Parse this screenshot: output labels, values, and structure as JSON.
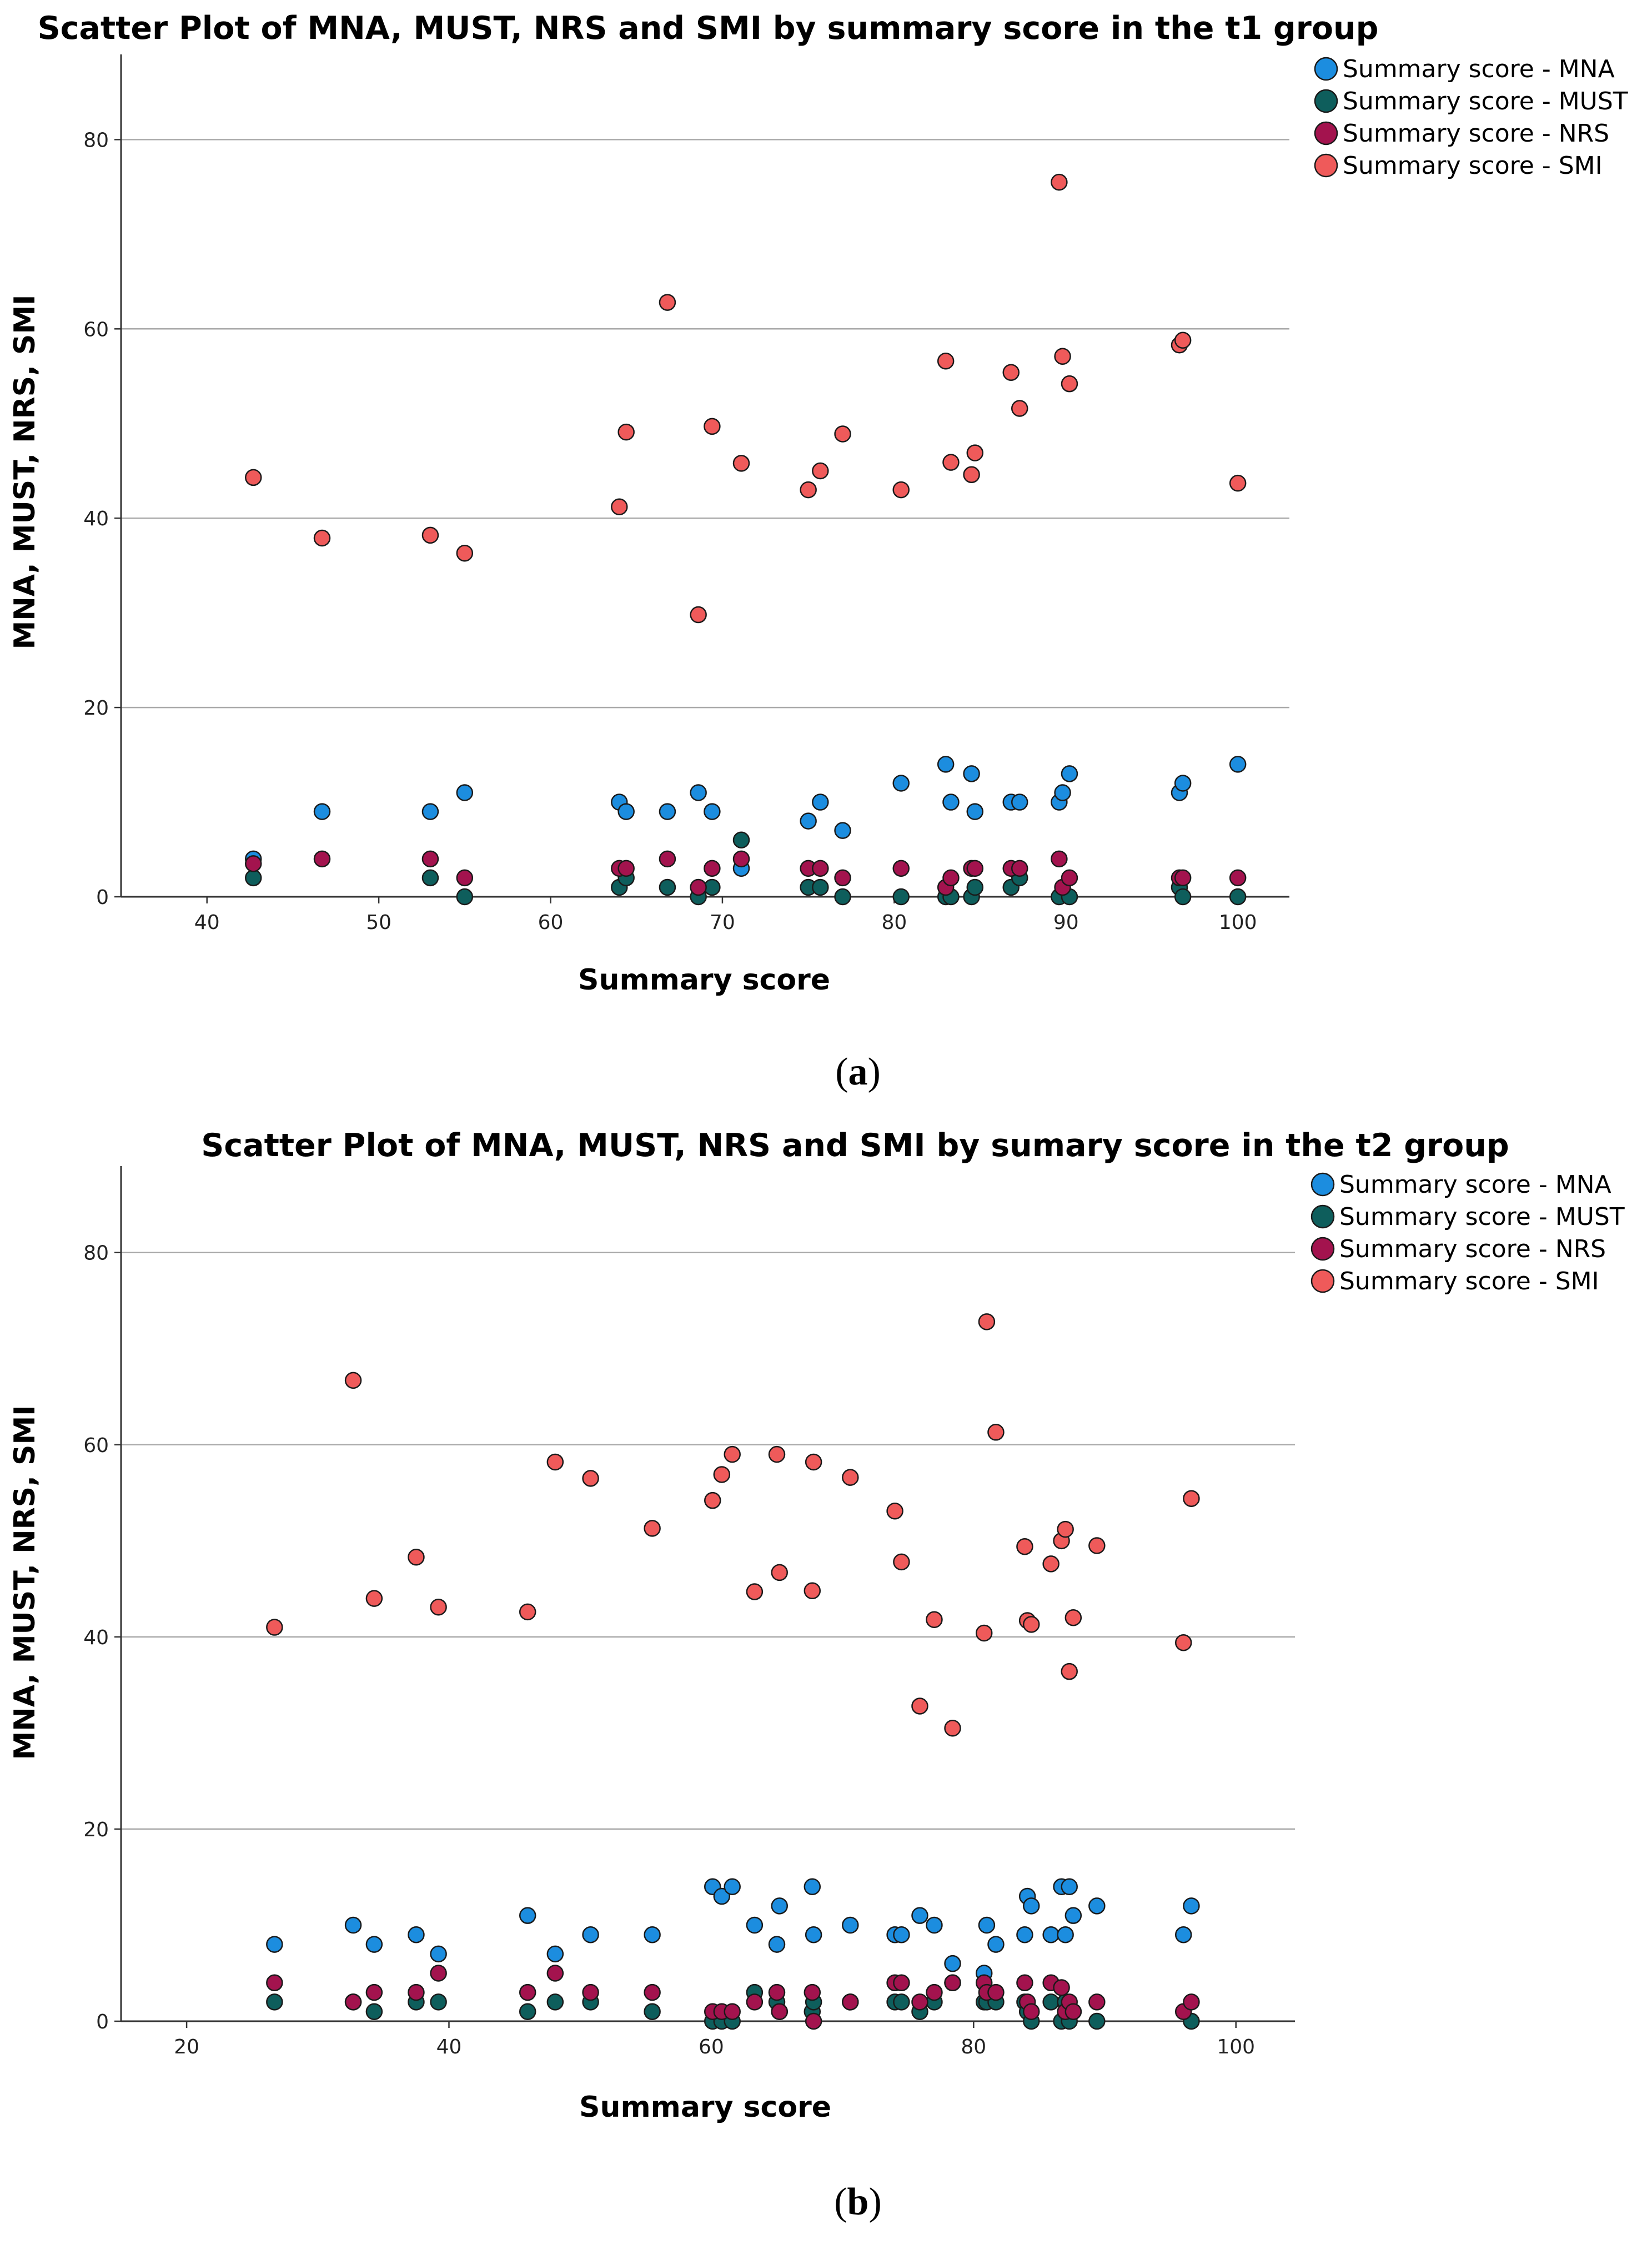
{
  "figure": {
    "caption_a": "a",
    "caption_b": "b"
  },
  "chart_data": [
    {
      "type": "scatter",
      "title": "Scatter Plot of MNA, MUST, NRS and SMI by summary score in the t1 group",
      "xlabel": "Summary score",
      "ylabel": "MNA, MUST, NRS, SMI",
      "xlim": [
        35,
        103
      ],
      "ylim": [
        0,
        89
      ],
      "xticks": [
        40,
        50,
        60,
        70,
        80,
        90,
        100
      ],
      "yticks": [
        20,
        40,
        60,
        80
      ],
      "grid": "horizontal",
      "legend_position": "top-right",
      "series": [
        {
          "name": "Summary score - MNA",
          "color": "#1c8ddf",
          "x": [
            42.7,
            46.7,
            53.0,
            55.0,
            64.0,
            64.4,
            66.8,
            68.6,
            69.4,
            71.1,
            75.0,
            75.7,
            77.0,
            80.4,
            83.0,
            83.3,
            84.5,
            84.7,
            86.8,
            87.3,
            89.6,
            89.8,
            90.2,
            96.6,
            96.8,
            100.0
          ],
          "y": [
            4,
            9,
            9,
            11,
            10,
            9,
            9,
            11,
            9,
            3,
            8,
            10,
            7,
            12,
            14,
            10,
            13,
            9,
            10,
            10,
            10,
            11,
            13,
            11,
            12,
            14
          ]
        },
        {
          "name": "Summary score - MUST",
          "color": "#0e5e5c",
          "x": [
            42.7,
            53.0,
            55.0,
            64.0,
            64.4,
            66.8,
            68.6,
            69.4,
            71.1,
            75.0,
            75.7,
            77.0,
            80.4,
            83.0,
            83.3,
            84.5,
            84.7,
            86.8,
            87.3,
            89.6,
            90.2,
            96.6,
            96.8,
            100.0
          ],
          "y": [
            2,
            2,
            0,
            1,
            2,
            1,
            0,
            1,
            6,
            1,
            1,
            0,
            0,
            0,
            0,
            0,
            1,
            1,
            2,
            0,
            0,
            1,
            0,
            0
          ]
        },
        {
          "name": "Summary score - NRS",
          "color": "#a3134e",
          "x": [
            42.7,
            46.7,
            53.0,
            55.0,
            64.0,
            64.4,
            66.8,
            68.6,
            69.4,
            71.1,
            75.0,
            75.7,
            77.0,
            80.4,
            83.0,
            83.3,
            84.5,
            84.7,
            86.8,
            87.3,
            89.6,
            89.8,
            90.2,
            96.6,
            96.8,
            100.0
          ],
          "y": [
            3.5,
            4,
            4,
            2,
            3,
            3,
            4,
            1,
            3,
            4,
            3,
            3,
            2,
            3,
            1,
            2,
            3,
            3,
            3,
            3,
            4,
            1,
            2,
            2,
            2,
            2
          ]
        },
        {
          "name": "Summary score - SMI",
          "color": "#ef5a5a",
          "x": [
            42.7,
            46.7,
            53.0,
            55.0,
            64.0,
            64.4,
            66.8,
            68.6,
            69.4,
            71.1,
            75.0,
            75.7,
            77.0,
            80.4,
            83.0,
            83.3,
            84.5,
            84.7,
            86.8,
            87.3,
            89.6,
            89.8,
            90.2,
            96.6,
            96.8,
            100.0
          ],
          "y": [
            44.3,
            37.9,
            38.2,
            36.3,
            41.2,
            49.1,
            62.8,
            29.8,
            49.7,
            45.8,
            43.0,
            45.0,
            48.9,
            43.0,
            56.6,
            45.9,
            44.6,
            46.9,
            55.4,
            51.6,
            75.5,
            57.1,
            54.2,
            58.3,
            58.8,
            43.7
          ]
        }
      ]
    },
    {
      "type": "scatter",
      "title": "Scatter Plot of MNA, MUST, NRS and SMI by sumary score in the t2 group",
      "xlabel": "Summary score",
      "ylabel": "MNA, MUST, NRS, SMI",
      "xlim": [
        15,
        104.5
      ],
      "ylim": [
        0,
        89
      ],
      "xticks": [
        20,
        40,
        60,
        80,
        100
      ],
      "yticks": [
        20,
        40,
        60,
        80
      ],
      "grid": "horizontal",
      "legend_position": "top-right",
      "series": [
        {
          "name": "Summary score - MNA",
          "color": "#1c8ddf",
          "x": [
            26.7,
            32.7,
            34.3,
            37.5,
            39.2,
            46.0,
            48.1,
            50.8,
            55.5,
            60.1,
            60.8,
            61.6,
            63.3,
            65.0,
            65.2,
            67.7,
            67.8,
            70.6,
            74.0,
            74.5,
            75.9,
            77.0,
            78.4,
            80.8,
            81.0,
            81.7,
            83.9,
            84.1,
            84.4,
            85.9,
            86.7,
            87.0,
            87.3,
            87.6,
            89.4,
            96.0,
            96.6
          ],
          "y": [
            8,
            10,
            8,
            9,
            7,
            11,
            7,
            9,
            9,
            14,
            13,
            14,
            10,
            8,
            12,
            14,
            9,
            10,
            9,
            9,
            11,
            10,
            6,
            5,
            10,
            8,
            9,
            13,
            12,
            9,
            14,
            9,
            14,
            11,
            12,
            9,
            12
          ]
        },
        {
          "name": "Summary score - MUST",
          "color": "#0e5e5c",
          "x": [
            26.7,
            32.7,
            34.3,
            37.5,
            39.2,
            46.0,
            48.1,
            50.8,
            55.5,
            60.1,
            60.8,
            61.6,
            63.3,
            65.0,
            65.2,
            67.7,
            67.8,
            70.6,
            74.0,
            74.5,
            75.9,
            77.0,
            78.4,
            80.8,
            81.0,
            81.7,
            83.9,
            84.1,
            84.4,
            85.9,
            86.7,
            87.0,
            87.3,
            87.6,
            89.4,
            96.6
          ],
          "y": [
            2,
            2,
            1,
            2,
            2,
            1,
            2,
            2,
            1,
            0,
            0,
            0,
            3,
            2,
            1,
            1,
            2,
            2,
            2,
            2,
            1,
            2,
            4,
            2,
            2,
            2,
            2,
            1,
            0,
            2,
            0,
            2,
            0,
            1,
            0,
            0
          ]
        },
        {
          "name": "Summary score - NRS",
          "color": "#a3134e",
          "x": [
            26.7,
            32.7,
            34.3,
            37.5,
            39.2,
            46.0,
            48.1,
            50.8,
            55.5,
            60.1,
            60.8,
            61.6,
            63.3,
            65.0,
            65.2,
            67.7,
            67.8,
            70.6,
            74.0,
            74.5,
            75.9,
            77.0,
            78.4,
            80.8,
            81.0,
            81.7,
            83.9,
            84.1,
            84.4,
            85.9,
            86.7,
            87.0,
            87.3,
            87.6,
            89.4,
            96.0,
            96.6
          ],
          "y": [
            4,
            2,
            3,
            3,
            5,
            3,
            5,
            3,
            3,
            1,
            1,
            1,
            2,
            3,
            1,
            3,
            0,
            2,
            4,
            4,
            2,
            3,
            4,
            4,
            3,
            3,
            4,
            2,
            1,
            4,
            3.5,
            1,
            2,
            1,
            2,
            1,
            2
          ]
        },
        {
          "name": "Summary score - SMI",
          "color": "#ef5a5a",
          "x": [
            26.7,
            32.7,
            34.3,
            37.5,
            39.2,
            46.0,
            48.1,
            50.8,
            55.5,
            60.1,
            60.8,
            61.6,
            63.3,
            65.0,
            65.2,
            67.7,
            67.8,
            70.6,
            74.0,
            74.5,
            75.9,
            77.0,
            78.4,
            80.8,
            81.0,
            81.7,
            83.9,
            84.1,
            84.4,
            85.9,
            86.7,
            87.0,
            87.3,
            87.6,
            89.4,
            96.0,
            96.6
          ],
          "y": [
            41.0,
            66.7,
            44.0,
            48.3,
            43.1,
            42.6,
            58.2,
            56.5,
            51.3,
            54.2,
            56.9,
            59.0,
            44.7,
            59.0,
            46.7,
            44.8,
            58.2,
            56.6,
            53.1,
            47.8,
            32.8,
            41.8,
            30.5,
            40.4,
            72.8,
            61.3,
            49.4,
            41.7,
            41.3,
            47.6,
            50.0,
            51.2,
            36.4,
            42.0,
            49.5,
            39.4,
            54.4
          ]
        }
      ]
    }
  ]
}
